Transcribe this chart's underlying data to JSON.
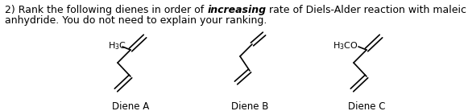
{
  "title_line1": "2) Rank the following dienes in order of ",
  "title_bold": "increasing",
  "title_line1_end": " rate of Diels-Alder reaction with maleic",
  "title_line2": "anhydride. You do not need to explain your ranking.",
  "diene_labels": [
    "Diene A",
    "Diene B",
    "Diene C"
  ],
  "background_color": "#ffffff",
  "text_color": "#000000",
  "fontsize_body": 9.0,
  "fontsize_label": 8.5,
  "fontsize_subst": 8.0
}
